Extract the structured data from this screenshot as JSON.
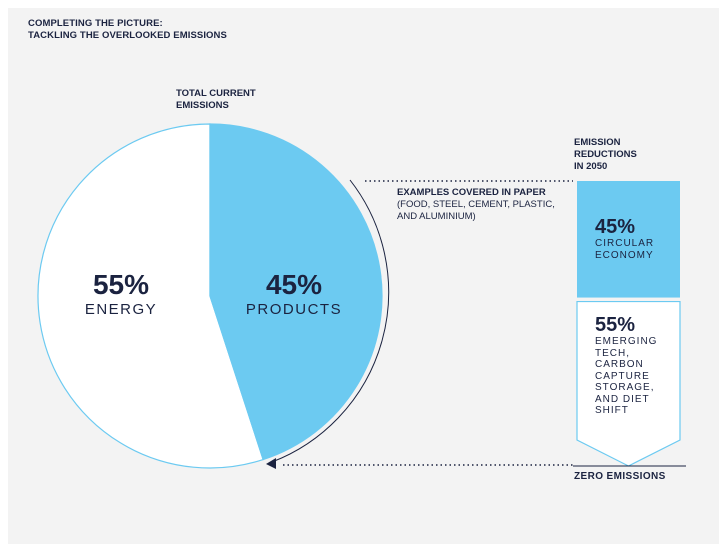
{
  "title": {
    "line1": "COMPLETING THE PICTURE:",
    "line2": "TACKLING THE OVERLOOKED EMISSIONS"
  },
  "pie": {
    "label_line1": "TOTAL CURRENT",
    "label_line2": "EMISSIONS"
  },
  "examples": {
    "bold": "EXAMPLES COVERED IN PAPER",
    "rest": " (FOOD, STEEL, CEMENT, PLASTIC, AND ALUMINIUM)"
  },
  "reductions": {
    "label_line1": "EMISSION",
    "label_line2": "REDUCTIONS",
    "label_line3": "IN 2050",
    "circular_pct": "45%",
    "circular_line1": "CIRCULAR",
    "circular_line2": "ECONOMY",
    "emerging_pct": "55%",
    "emerging_lines": [
      "EMERGING",
      "TECH,",
      "CARBON",
      "CAPTURE",
      "STORAGE,",
      "AND DIET",
      "SHIFT"
    ],
    "zero_label": "ZERO EMISSIONS"
  },
  "colors": {
    "accent": "#6ccaf1",
    "navy": "#1b2340",
    "white": "#ffffff",
    "outline": "#6ccaf1"
  },
  "chart_data": [
    {
      "type": "pie",
      "title": "TOTAL CURRENT EMISSIONS",
      "slices": [
        {
          "label": "ENERGY",
          "value": 55,
          "display": "55%"
        },
        {
          "label": "PRODUCTS",
          "value": 45,
          "display": "45%"
        }
      ]
    },
    {
      "type": "bar",
      "title": "EMISSION REDUCTIONS IN 2050",
      "stacked": true,
      "segments": [
        {
          "label": "CIRCULAR ECONOMY",
          "value": 45,
          "display": "45%"
        },
        {
          "label": "EMERGING TECH, CARBON CAPTURE STORAGE, AND DIET SHIFT",
          "value": 55,
          "display": "55%"
        }
      ]
    }
  ]
}
